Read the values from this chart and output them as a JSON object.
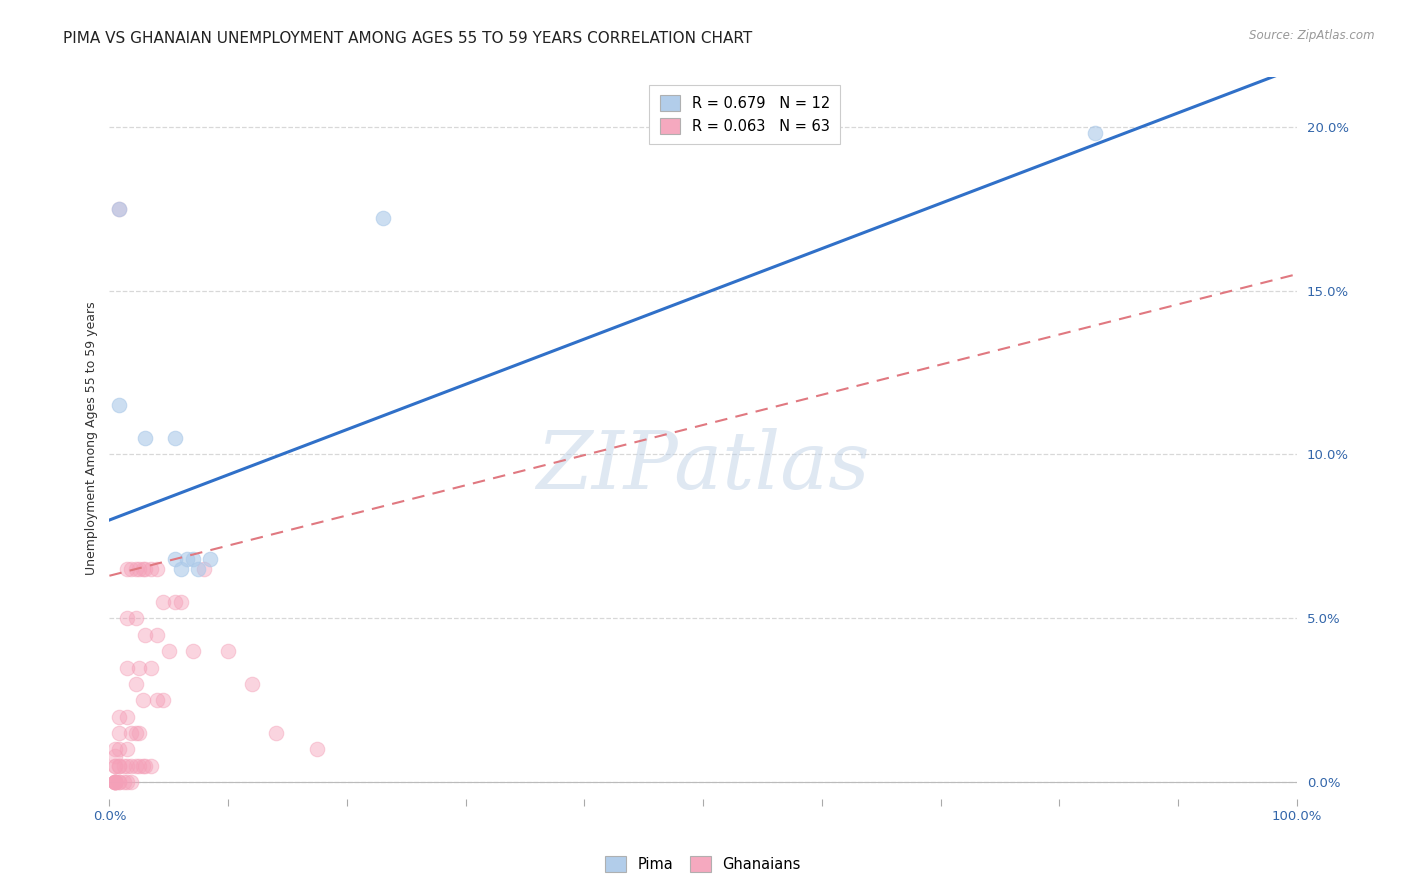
{
  "title": "PIMA VS GHANAIAN UNEMPLOYMENT AMONG AGES 55 TO 59 YEARS CORRELATION CHART",
  "source": "Source: ZipAtlas.com",
  "ylabel": "Unemployment Among Ages 55 to 59 years",
  "watermark": "ZIPatlas",
  "pima_R": 0.679,
  "pima_N": 12,
  "ghanaian_R": 0.063,
  "ghanaian_N": 63,
  "pima_color": "#aac8e8",
  "ghanaian_color": "#f4a0b8",
  "pima_line_color": "#3070c8",
  "ghanaian_line_color": "#e07880",
  "xlim": [
    0,
    1.0
  ],
  "ylim": [
    -0.005,
    0.215
  ],
  "xticks": [
    0.0,
    0.1,
    0.2,
    0.3,
    0.4,
    0.5,
    0.6,
    0.7,
    0.8,
    0.9,
    1.0
  ],
  "yticks": [
    0.0,
    0.05,
    0.1,
    0.15,
    0.2
  ],
  "yticklabels": [
    "0.0%",
    "5.0%",
    "10.0%",
    "15.0%",
    "20.0%"
  ],
  "pima_line_x0": 0.0,
  "pima_line_y0": 0.08,
  "pima_line_x1": 1.0,
  "pima_line_y1": 0.218,
  "gh_line_x0": 0.0,
  "gh_line_y0": 0.063,
  "gh_line_x1": 1.0,
  "gh_line_y1": 0.155,
  "pima_x": [
    0.008,
    0.008,
    0.03,
    0.055,
    0.055,
    0.06,
    0.065,
    0.07,
    0.075,
    0.085,
    0.23,
    0.83
  ],
  "pima_y": [
    0.175,
    0.115,
    0.105,
    0.105,
    0.068,
    0.065,
    0.068,
    0.068,
    0.065,
    0.068,
    0.172,
    0.198
  ],
  "ghanaian_x": [
    0.005,
    0.005,
    0.005,
    0.005,
    0.005,
    0.005,
    0.005,
    0.005,
    0.005,
    0.005,
    0.008,
    0.008,
    0.008,
    0.008,
    0.008,
    0.008,
    0.008,
    0.008,
    0.012,
    0.012,
    0.015,
    0.015,
    0.015,
    0.015,
    0.015,
    0.015,
    0.015,
    0.018,
    0.018,
    0.018,
    0.018,
    0.022,
    0.022,
    0.022,
    0.022,
    0.022,
    0.025,
    0.025,
    0.025,
    0.025,
    0.028,
    0.028,
    0.028,
    0.03,
    0.03,
    0.03,
    0.035,
    0.035,
    0.035,
    0.04,
    0.04,
    0.04,
    0.045,
    0.045,
    0.05,
    0.055,
    0.06,
    0.07,
    0.08,
    0.1,
    0.12,
    0.14,
    0.175
  ],
  "ghanaian_y": [
    0.0,
    0.0,
    0.0,
    0.0,
    0.0,
    0.0,
    0.005,
    0.005,
    0.008,
    0.01,
    0.0,
    0.0,
    0.005,
    0.005,
    0.01,
    0.015,
    0.02,
    0.175,
    0.0,
    0.005,
    0.0,
    0.005,
    0.01,
    0.02,
    0.035,
    0.05,
    0.065,
    0.0,
    0.005,
    0.015,
    0.065,
    0.005,
    0.015,
    0.03,
    0.05,
    0.065,
    0.005,
    0.015,
    0.035,
    0.065,
    0.005,
    0.025,
    0.065,
    0.005,
    0.045,
    0.065,
    0.005,
    0.035,
    0.065,
    0.025,
    0.045,
    0.065,
    0.025,
    0.055,
    0.04,
    0.055,
    0.055,
    0.04,
    0.065,
    0.04,
    0.03,
    0.015,
    0.01
  ],
  "background_color": "#ffffff",
  "grid_color": "#d8d8d8",
  "title_fontsize": 11,
  "axis_fontsize": 9,
  "tick_fontsize": 9.5,
  "marker_size": 110,
  "marker_alpha": 0.45
}
